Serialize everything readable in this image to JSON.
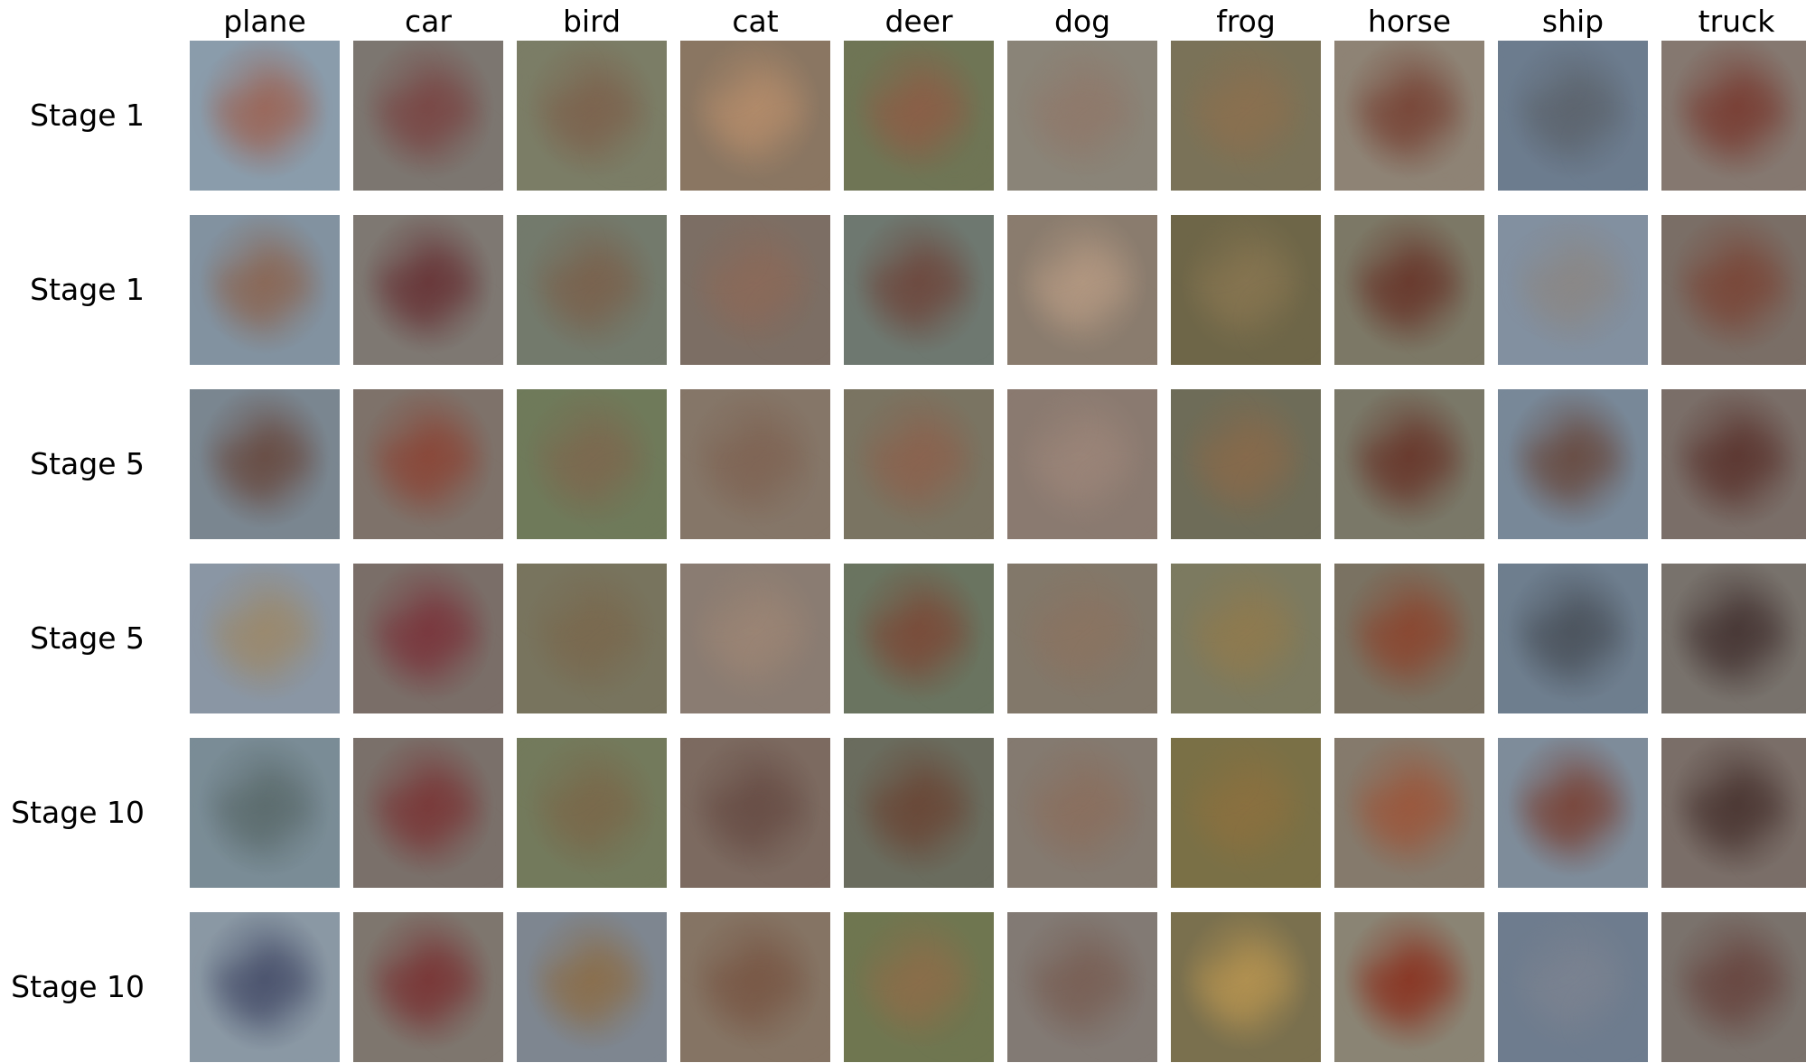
{
  "columns": [
    {
      "label": "plane"
    },
    {
      "label": "car"
    },
    {
      "label": "bird"
    },
    {
      "label": "cat"
    },
    {
      "label": "deer"
    },
    {
      "label": "dog"
    },
    {
      "label": "frog"
    },
    {
      "label": "horse"
    },
    {
      "label": "ship"
    },
    {
      "label": "truck"
    }
  ],
  "rows": [
    {
      "label": "Stage 1",
      "tiles": [
        {
          "bg": "#8a9cab",
          "fg": "#9a6a5e"
        },
        {
          "bg": "#7c7670",
          "fg": "#7a4a48"
        },
        {
          "bg": "#7b7d66",
          "fg": "#7d6550"
        },
        {
          "bg": "#8a7662",
          "fg": "#b08a6a"
        },
        {
          "bg": "#6f7555",
          "fg": "#8a6048"
        },
        {
          "bg": "#8a8478",
          "fg": "#8f7a6c"
        },
        {
          "bg": "#7a7258",
          "fg": "#8a7050"
        },
        {
          "bg": "#8e8375",
          "fg": "#7a4a3c"
        },
        {
          "bg": "#6c7c8e",
          "fg": "#5e6670"
        },
        {
          "bg": "#857870",
          "fg": "#7a4238"
        }
      ]
    },
    {
      "label": "Stage 1",
      "tiles": [
        {
          "bg": "#8292a0",
          "fg": "#8a6a5a"
        },
        {
          "bg": "#7e7872",
          "fg": "#6a3a3c"
        },
        {
          "bg": "#737a6c",
          "fg": "#7a6450"
        },
        {
          "bg": "#7c6e64",
          "fg": "#8a6a5a"
        },
        {
          "bg": "#6e7870",
          "fg": "#6e4c42"
        },
        {
          "bg": "#8a7c6e",
          "fg": "#b09680"
        },
        {
          "bg": "#6e6648",
          "fg": "#857450"
        },
        {
          "bg": "#7c7866",
          "fg": "#6a3c30"
        },
        {
          "bg": "#8290a0",
          "fg": "#8a8888"
        },
        {
          "bg": "#7a6e66",
          "fg": "#7a4a3c"
        }
      ]
    },
    {
      "label": "Stage 5",
      "tiles": [
        {
          "bg": "#7a8690",
          "fg": "#6a5048"
        },
        {
          "bg": "#7e726a",
          "fg": "#8a4a3c"
        },
        {
          "bg": "#6f7a5a",
          "fg": "#7c6a50"
        },
        {
          "bg": "#857668",
          "fg": "#806656"
        },
        {
          "bg": "#7a7462",
          "fg": "#8a6450"
        },
        {
          "bg": "#8a7a70",
          "fg": "#9a8478"
        },
        {
          "bg": "#6e6c58",
          "fg": "#866a4c"
        },
        {
          "bg": "#7a7868",
          "fg": "#6a3c30"
        },
        {
          "bg": "#788898",
          "fg": "#6a5048"
        },
        {
          "bg": "#7a6e68",
          "fg": "#5e3a34"
        }
      ]
    },
    {
      "label": "Stage 5",
      "tiles": [
        {
          "bg": "#8a96a4",
          "fg": "#9a8a70"
        },
        {
          "bg": "#7a6e68",
          "fg": "#7a3a40"
        },
        {
          "bg": "#78745e",
          "fg": "#7a6a50"
        },
        {
          "bg": "#8a7c72",
          "fg": "#9a8474"
        },
        {
          "bg": "#6a7460",
          "fg": "#7a4e3c"
        },
        {
          "bg": "#82786a",
          "fg": "#8a7462"
        },
        {
          "bg": "#7c7a60",
          "fg": "#8e7a50"
        },
        {
          "bg": "#7a7262",
          "fg": "#8a4a34"
        },
        {
          "bg": "#6e7e8e",
          "fg": "#4e5660"
        },
        {
          "bg": "#78726c",
          "fg": "#4a3a38"
        }
      ]
    },
    {
      "label": "Stage 10",
      "tiles": [
        {
          "bg": "#7a8c96",
          "fg": "#5e6e70"
        },
        {
          "bg": "#7a706a",
          "fg": "#7a3c3c"
        },
        {
          "bg": "#737a5c",
          "fg": "#7a6a4c"
        },
        {
          "bg": "#7c6a60",
          "fg": "#6a5048"
        },
        {
          "bg": "#6a6c5e",
          "fg": "#6a4a3a"
        },
        {
          "bg": "#847a70",
          "fg": "#8a7060"
        },
        {
          "bg": "#7a7046",
          "fg": "#8a7040"
        },
        {
          "bg": "#857a6c",
          "fg": "#9a5a40"
        },
        {
          "bg": "#7e8c9a",
          "fg": "#7a4a40"
        },
        {
          "bg": "#7a6e68",
          "fg": "#4e3a36"
        }
      ]
    },
    {
      "label": "Stage 10",
      "tiles": [
        {
          "bg": "#8a98a4",
          "fg": "#4e5670"
        },
        {
          "bg": "#7e766e",
          "fg": "#7a3a3a"
        },
        {
          "bg": "#7e8690",
          "fg": "#8a7050"
        },
        {
          "bg": "#857464",
          "fg": "#7a5a48"
        },
        {
          "bg": "#6f7650",
          "fg": "#8a6e4a"
        },
        {
          "bg": "#827a74",
          "fg": "#7a6258"
        },
        {
          "bg": "#7a704e",
          "fg": "#b09050"
        },
        {
          "bg": "#8a8474",
          "fg": "#8a3a28"
        },
        {
          "bg": "#6e7c8e",
          "fg": "#7a8290"
        },
        {
          "bg": "#7a726c",
          "fg": "#6a4a44"
        }
      ]
    }
  ]
}
